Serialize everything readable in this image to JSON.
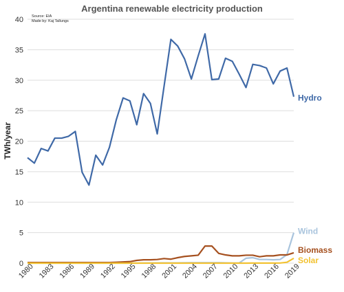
{
  "chart_data": {
    "type": "line",
    "title": "Argentina renewable electricity production",
    "source_line1": "Source: EIA",
    "source_line2": "Made by: Kaj Tallungs",
    "ylabel": "TWh/year",
    "xlabel": "",
    "ylim": [
      0,
      40
    ],
    "yticks": [
      0,
      5,
      10,
      15,
      20,
      25,
      30,
      35,
      40
    ],
    "xlim": [
      1980,
      2019
    ],
    "xticks": [
      1980,
      1983,
      1986,
      1989,
      1992,
      1995,
      1998,
      2001,
      2004,
      2007,
      2010,
      2013,
      2016,
      2019
    ],
    "grid": true,
    "legend": "labels at line ends (right)",
    "x": [
      1980,
      1981,
      1982,
      1983,
      1984,
      1985,
      1986,
      1987,
      1988,
      1989,
      1990,
      1991,
      1992,
      1993,
      1994,
      1995,
      1996,
      1997,
      1998,
      1999,
      2000,
      2001,
      2002,
      2003,
      2004,
      2005,
      2006,
      2007,
      2008,
      2009,
      2010,
      2011,
      2012,
      2013,
      2014,
      2015,
      2016,
      2017,
      2018,
      2019
    ],
    "series": [
      {
        "name": "Hydro",
        "color": "#3f69a7",
        "values": [
          17.3,
          16.4,
          18.8,
          18.4,
          20.5,
          20.5,
          20.8,
          21.6,
          14.9,
          12.8,
          17.7,
          16.1,
          19.0,
          23.5,
          27.1,
          26.6,
          22.7,
          27.8,
          26.2,
          21.2,
          29.0,
          36.7,
          35.6,
          33.5,
          30.2,
          34.0,
          37.6,
          30.1,
          30.2,
          33.6,
          33.1,
          31.0,
          28.8,
          32.6,
          32.4,
          32.0,
          29.4,
          31.5,
          32.0,
          27.3
        ]
      },
      {
        "name": "Wind",
        "color": "#a9c4dd",
        "values": [
          0,
          0,
          0,
          0,
          0,
          0,
          0,
          0,
          0,
          0,
          0,
          0,
          0,
          0,
          0,
          0,
          0,
          0.02,
          0.03,
          0.05,
          0.05,
          0.05,
          0.05,
          0.06,
          0.07,
          0.07,
          0.07,
          0.07,
          0.07,
          0.05,
          0.02,
          0.02,
          0.8,
          0.9,
          0.6,
          0.6,
          0.55,
          0.6,
          1.4,
          5.0
        ]
      },
      {
        "name": "Biomass",
        "color": "#a5501f",
        "values": [
          0.1,
          0.1,
          0.1,
          0.1,
          0.1,
          0.1,
          0.1,
          0.1,
          0.1,
          0.1,
          0.1,
          0.1,
          0.1,
          0.15,
          0.2,
          0.25,
          0.45,
          0.55,
          0.55,
          0.6,
          0.75,
          0.65,
          0.9,
          1.1,
          1.2,
          1.3,
          2.8,
          2.8,
          1.6,
          1.35,
          1.2,
          1.2,
          1.3,
          1.3,
          1.05,
          1.2,
          1.2,
          1.35,
          1.35,
          1.7
        ]
      },
      {
        "name": "Solar",
        "color": "#f2c232",
        "values": [
          0,
          0,
          0,
          0,
          0,
          0,
          0,
          0,
          0,
          0,
          0,
          0,
          0,
          0,
          0,
          0,
          0,
          0,
          0,
          0,
          0,
          0,
          0,
          0,
          0,
          0,
          0,
          0,
          0,
          0,
          0,
          0,
          0,
          0.01,
          0.01,
          0.01,
          0.01,
          0.02,
          0.15,
          0.8
        ]
      }
    ]
  }
}
